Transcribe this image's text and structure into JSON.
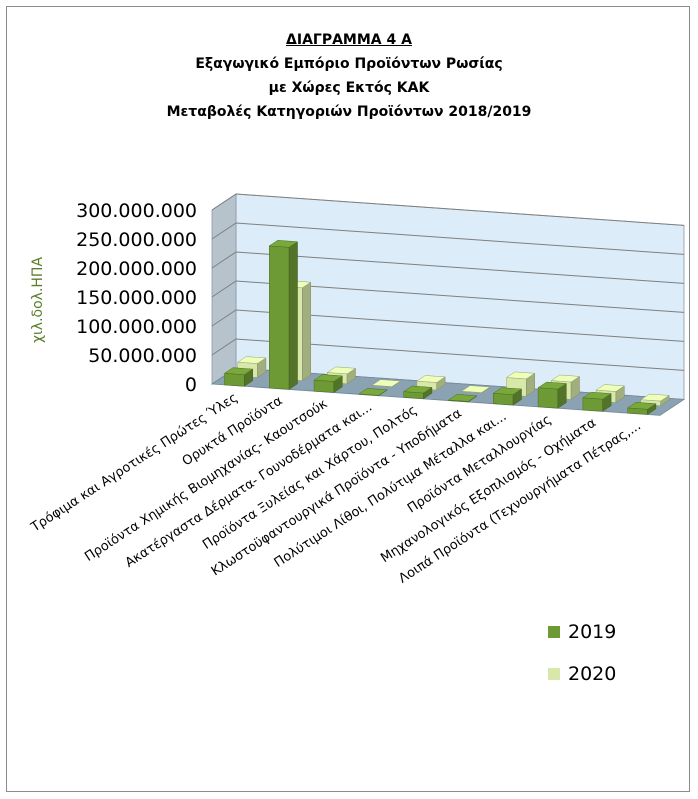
{
  "chart_data": {
    "type": "bar",
    "title_lines": [
      "ΔΙΑΓΡΑΜΜΑ 4 Α",
      "Εξαγωγικό Εμπόριο Προϊόντων Ρωσίας",
      "με Χώρες Εκτός ΚΑΚ",
      "Μεταβολές Κατηγοριών Προϊόντων 2018/2019"
    ],
    "ylabel": "χιλ.δολ.ΗΠΑ",
    "ylim": [
      0,
      300000000
    ],
    "yticks": [
      "300.000.000",
      "250.000.000",
      "200.000.000",
      "150.000.000",
      "100.000.000",
      "50.000.000",
      "0"
    ],
    "categories": [
      "Τρόφιμα και Αγροτικές Πρώτες Ύλες",
      "Ορυκτά Προϊόντα",
      "Προϊόντα Χημικής Βιομηχανίας- Καουτσούκ",
      "Ακατέργαστα Δέρματα- Γουνοδέρματα και...",
      "Προϊόντα Ξυλείας και Χάρτου, Πολτός",
      "Κλωστοϋφαντουργικά Προϊόντα - Υποδήματα",
      "Πολύτιμοι Λίθοι, Πολύτιμα Μέταλλα και...",
      "Προϊόντα Μεταλλουργίας",
      "Μηχανολογικός Εξοπλισμός - Οχήματα",
      "Λοιπά Προϊόντα (Τεχνουργήματα Πέτρας,..."
    ],
    "series": [
      {
        "name": "2019",
        "color": "#6e9a35",
        "values": [
          20000000,
          245000000,
          19000000,
          500000,
          10000000,
          1000000,
          18000000,
          33000000,
          21000000,
          9000000
        ]
      },
      {
        "name": "2020",
        "color": "#d7e8a8",
        "values": [
          24000000,
          160000000,
          17000000,
          500000,
          13000000,
          1000000,
          30000000,
          30000000,
          19000000,
          8000000
        ]
      }
    ],
    "grid": true,
    "legend": "right"
  }
}
